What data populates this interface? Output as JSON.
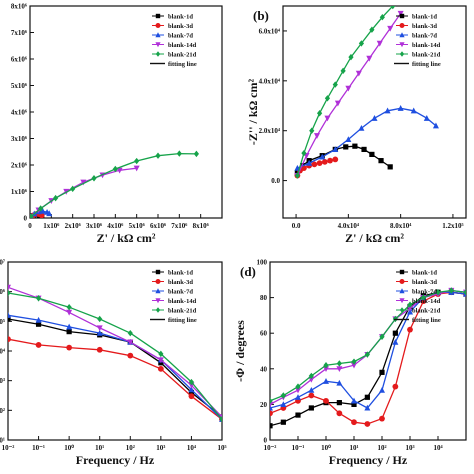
{
  "figure": {
    "legend_series": [
      "blank-1d",
      "blank-3d",
      "blank-7d",
      "blank-14d",
      "blank-21d"
    ],
    "legend_fit": "fitting line",
    "colors": [
      "#000000",
      "#e41a1c",
      "#1f4fe0",
      "#b030d8",
      "#16a34a"
    ],
    "markers": [
      "square",
      "circle",
      "triangle-up",
      "triangle-down",
      "diamond"
    ]
  },
  "chart_data": [
    {
      "panel": "a",
      "type": "scatter",
      "label": "",
      "xlabel": "Z' / kΩ cm²",
      "ylabel": "",
      "xlim": [
        0,
        9000000
      ],
      "ylim": [
        0,
        8000000
      ],
      "xticks": [
        "0",
        "1x10⁶",
        "2x10⁶",
        "3x10⁶",
        "4x10⁶",
        "5x10⁶",
        "6x10⁶",
        "7x10⁶",
        "8x10⁶"
      ],
      "yticks": [
        "0",
        "1x10⁶",
        "2x10⁶",
        "3x10⁶",
        "4x10⁶",
        "5x10⁶",
        "6x10⁶",
        "7x10⁶",
        "8x10⁶"
      ],
      "series": [
        {
          "name": "blank-1d",
          "x": [
            50000,
            150000,
            300000,
            450000,
            550000
          ],
          "y": [
            30000,
            90000,
            130000,
            110000,
            60000
          ]
        },
        {
          "name": "blank-3d",
          "x": [
            50000,
            150000,
            300000,
            450000,
            550000
          ],
          "y": [
            40000,
            100000,
            150000,
            140000,
            100000
          ]
        },
        {
          "name": "blank-7d",
          "x": [
            50000,
            200000,
            400000,
            600000,
            800000,
            900000
          ],
          "y": [
            60000,
            160000,
            240000,
            260000,
            220000,
            170000
          ]
        },
        {
          "name": "blank-14d",
          "x": [
            50000,
            400000,
            1000000,
            1700000,
            2500000,
            3400000,
            4200000,
            5000000
          ],
          "y": [
            60000,
            300000,
            650000,
            1000000,
            1350000,
            1620000,
            1800000,
            1880000
          ]
        },
        {
          "name": "blank-21d",
          "x": [
            50000,
            500000,
            1200000,
            2000000,
            3000000,
            4000000,
            5000000,
            6000000,
            7000000,
            7800000
          ],
          "y": [
            60000,
            360000,
            750000,
            1100000,
            1500000,
            1850000,
            2150000,
            2350000,
            2430000,
            2420000
          ]
        }
      ]
    },
    {
      "panel": "b",
      "type": "scatter",
      "label": "(b)",
      "xlabel": "Z' / kΩ cm²",
      "ylabel": "-Z'' / kΩ cm²",
      "xlim": [
        -10000,
        130000
      ],
      "ylim": [
        -15000,
        70000
      ],
      "xticks": [
        "0.0",
        "4.0x10⁴",
        "8.0x10⁴",
        "1.2x10⁵"
      ],
      "yticks": [
        "0.0",
        "2.0x10⁴",
        "4.0x10⁴",
        "6.0x10⁴"
      ],
      "series": [
        {
          "name": "blank-1d",
          "x": [
            1000,
            5000,
            10000,
            20000,
            30000,
            38000,
            45000,
            52000,
            58000,
            65000,
            72000
          ],
          "y": [
            3000,
            6000,
            8000,
            10000,
            12500,
            13500,
            13800,
            12500,
            10500,
            8000,
            5500
          ]
        },
        {
          "name": "blank-3d",
          "x": [
            1000,
            3000,
            6000,
            10000,
            14000,
            18000,
            22000,
            26000,
            30000
          ],
          "y": [
            2000,
            4000,
            5000,
            6000,
            6500,
            7000,
            7500,
            8000,
            8500
          ]
        },
        {
          "name": "blank-7d",
          "x": [
            1000,
            10000,
            20000,
            30000,
            40000,
            50000,
            60000,
            70000,
            80000,
            90000,
            100000,
            107000
          ],
          "y": [
            5000,
            7000,
            9500,
            12500,
            16500,
            21000,
            25000,
            28000,
            29000,
            28000,
            25000,
            22000
          ]
        },
        {
          "name": "blank-14d",
          "x": [
            1000,
            8000,
            16000,
            24000,
            32000,
            40000,
            48000,
            56000,
            64000,
            72000,
            80000
          ],
          "y": [
            2000,
            10000,
            18000,
            25000,
            31000,
            37000,
            43000,
            49000,
            55000,
            61000,
            67000
          ]
        },
        {
          "name": "blank-21d",
          "x": [
            1000,
            6000,
            12000,
            18000,
            24000,
            30000,
            36000,
            42000,
            50000,
            58000,
            66000,
            74000
          ],
          "y": [
            2000,
            11000,
            20000,
            27000,
            33000,
            38500,
            44000,
            49500,
            55000,
            60500,
            65500,
            70000
          ]
        }
      ]
    },
    {
      "panel": "c",
      "type": "scatter",
      "label": "",
      "xlabel": "Frequency / Hz",
      "ylabel": "",
      "xlog": true,
      "ylog": true,
      "xlim": [
        0.01,
        100000
      ],
      "ylim": [
        10,
        10000000
      ],
      "xticks": [
        "10⁻²",
        "10⁻¹",
        "10⁰",
        "10¹",
        "10²",
        "10³",
        "10⁴",
        "10⁵"
      ],
      "yticks": [
        "10¹",
        "10²",
        "10³",
        "10⁴",
        "10⁵",
        "10⁶",
        "10⁷"
      ],
      "series": [
        {
          "name": "blank-1d",
          "x": [
            0.01,
            0.1,
            1,
            10,
            100,
            1000,
            10000,
            100000
          ],
          "y": [
            120000,
            80000,
            45000,
            35000,
            20000,
            4000,
            400,
            60
          ]
        },
        {
          "name": "blank-3d",
          "x": [
            0.01,
            0.1,
            1,
            10,
            100,
            1000,
            10000,
            100000
          ],
          "y": [
            25000,
            16000,
            13000,
            11000,
            7000,
            2500,
            300,
            50
          ]
        },
        {
          "name": "blank-7d",
          "x": [
            0.01,
            0.1,
            1,
            10,
            100,
            1000,
            10000,
            100000
          ],
          "y": [
            160000,
            110000,
            65000,
            40000,
            20000,
            5000,
            500,
            50
          ]
        },
        {
          "name": "blank-14d",
          "x": [
            0.01,
            0.1,
            1,
            10,
            100,
            1000,
            10000,
            100000
          ],
          "y": [
            1400000,
            600000,
            200000,
            60000,
            20000,
            5000,
            700,
            60
          ]
        },
        {
          "name": "blank-21d",
          "x": [
            0.01,
            0.1,
            1,
            10,
            100,
            1000,
            10000,
            100000
          ],
          "y": [
            900000,
            600000,
            300000,
            120000,
            40000,
            8000,
            900,
            50
          ]
        }
      ]
    },
    {
      "panel": "d",
      "type": "scatter",
      "label": "(d)",
      "xlabel": "Frequency / Hz",
      "ylabel": "-Φ / degrees",
      "xlog": true,
      "xlim": [
        0.01,
        100000
      ],
      "ylim": [
        0,
        100
      ],
      "xticks": [
        "10⁻²",
        "10⁻¹",
        "10⁰",
        "10¹",
        "10²",
        "10³",
        "10⁴"
      ],
      "yticks": [
        "0",
        "20",
        "40",
        "60",
        "80",
        "100"
      ],
      "series": [
        {
          "name": "blank-1d",
          "x": [
            0.01,
            0.03,
            0.1,
            0.3,
            1,
            3,
            10,
            30,
            100,
            300,
            1000,
            3000,
            10000,
            30000,
            100000
          ],
          "y": [
            8,
            10,
            14,
            18,
            21,
            21,
            20,
            24,
            38,
            60,
            75,
            81,
            83,
            83,
            82
          ]
        },
        {
          "name": "blank-3d",
          "x": [
            0.01,
            0.03,
            0.1,
            0.3,
            1,
            3,
            10,
            30,
            100,
            300,
            1000,
            3000,
            10000,
            30000,
            100000
          ],
          "y": [
            15,
            18,
            22,
            25,
            22,
            15,
            10,
            9,
            12,
            30,
            62,
            78,
            82,
            83,
            82
          ]
        },
        {
          "name": "blank-7d",
          "x": [
            0.01,
            0.03,
            0.1,
            0.3,
            1,
            3,
            10,
            30,
            100,
            300,
            1000,
            3000,
            10000,
            30000,
            100000
          ],
          "y": [
            18,
            20,
            24,
            28,
            33,
            32,
            22,
            18,
            28,
            55,
            72,
            80,
            83,
            83,
            82
          ]
        },
        {
          "name": "blank-14d",
          "x": [
            0.01,
            0.03,
            0.1,
            0.3,
            1,
            3,
            10,
            30,
            100,
            300,
            1000,
            3000,
            10000,
            30000,
            100000
          ],
          "y": [
            20,
            24,
            28,
            34,
            40,
            40,
            42,
            48,
            58,
            68,
            74,
            80,
            82,
            84,
            83
          ]
        },
        {
          "name": "blank-21d",
          "x": [
            0.01,
            0.03,
            0.1,
            0.3,
            1,
            3,
            10,
            30,
            100,
            300,
            1000,
            3000,
            10000,
            30000,
            100000
          ],
          "y": [
            22,
            25,
            30,
            36,
            42,
            43,
            44,
            48,
            58,
            68,
            76,
            80,
            83,
            84,
            83
          ]
        }
      ]
    }
  ]
}
